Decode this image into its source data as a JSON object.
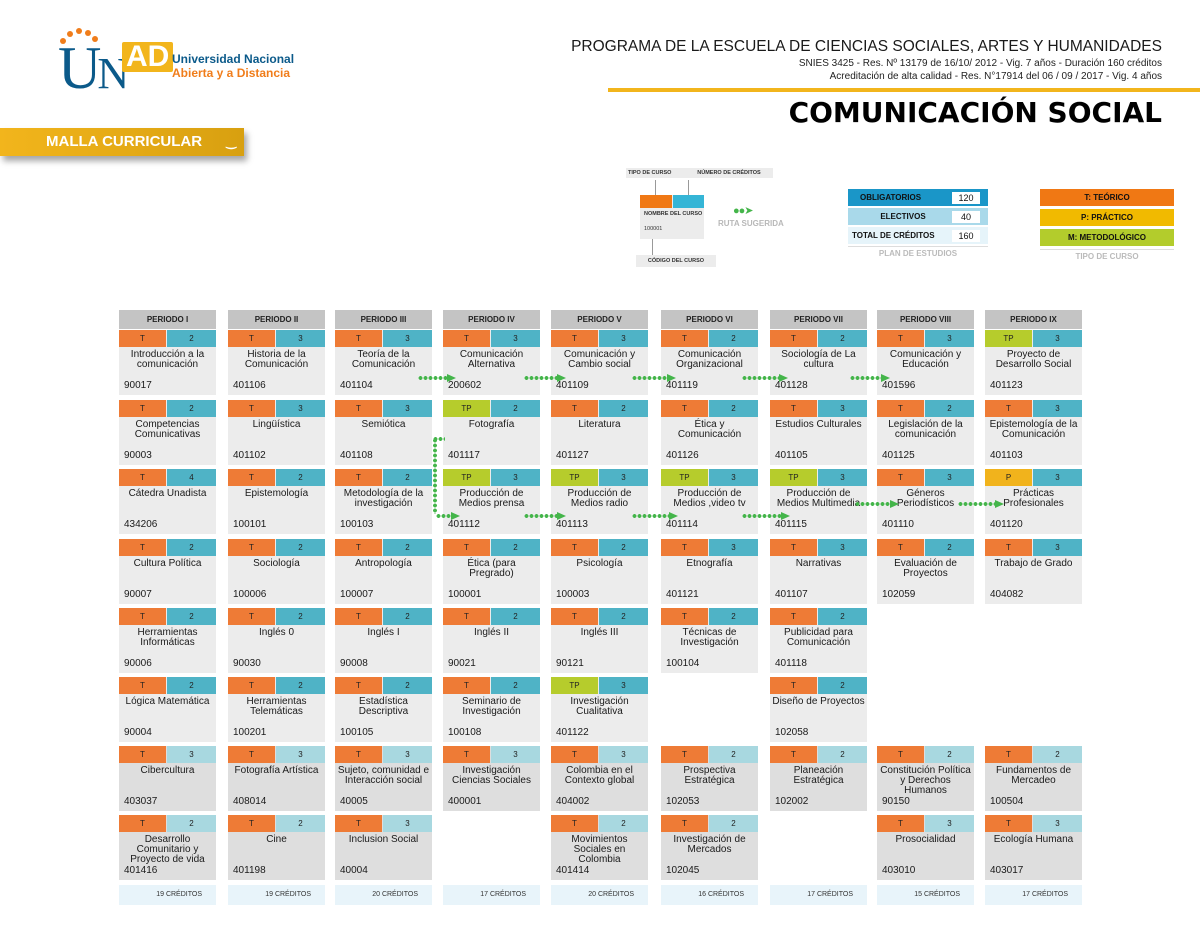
{
  "logo": {
    "letters_u": "U",
    "letters_n": "N",
    "letters_ad": "AD",
    "line1": "Universidad Nacional",
    "line2": "Abierta y a Distancia"
  },
  "banner": {
    "label": "MALLA CURRICULAR"
  },
  "header": {
    "program": "PROGRAMA DE LA ESCUELA DE CIENCIAS SOCIALES, ARTES Y HUMANIDADES",
    "snies": "SNIES 3425 - Res. Nº 13179 de 16/10/ 2012 - Vig. 7 años - Duración 160 créditos",
    "acreditacion": "Acreditación de alta calidad - Res. N°17914 del 06 / 09 / 2017  - Vig. 4 años",
    "title": "COMUNICACIÓN SOCIAL"
  },
  "legend": {
    "tipo_de_curso": "TIPO DE CURSO",
    "numero_de_creditos": "NÚMERO DE CRÉDITOS",
    "nombre_del_curso": "NOMBRE DEL CURSO",
    "codigo_ejemplo": "100001",
    "codigo_del_curso": "CÓDIGO DEL CURSO",
    "ruta_sugerida": "RUTA SUGERIDA"
  },
  "plan_estudios": {
    "caption": "PLAN DE ESTUDIOS",
    "rows": [
      {
        "label": "OBLIGATORIOS",
        "value": "120"
      },
      {
        "label": "ELECTIVOS",
        "value": "40"
      },
      {
        "label": "TOTAL DE CRÉDITOS",
        "value": "160"
      }
    ]
  },
  "tipo_curso": {
    "caption": "TIPO DE CURSO",
    "rows": [
      {
        "label": "T: TEÓRICO",
        "color": "#f07814"
      },
      {
        "label": "P: PRÁCTICO",
        "color": "#f1ba00"
      },
      {
        "label": "M: METODOLÓGICO",
        "color": "#b3cc2c"
      }
    ]
  },
  "colors": {
    "teorico": "#ee7b36",
    "teorico_practico": "#b6cc2c",
    "practico": "#f1b31c",
    "credits": "#4fb3c6",
    "credits_elective": "#a8d8e0",
    "ruta": "#44b54a",
    "gold": "#f2b51c",
    "unad_blue": "#0b5a8a"
  },
  "periods": [
    {
      "label": "PERIODO I",
      "total": "19 CRÉDITOS",
      "courses": [
        {
          "type": "T",
          "credits": "2",
          "name": "Introducción a la comunicación",
          "code": "90017"
        },
        {
          "type": "T",
          "credits": "2",
          "name": "Competencias Comunicativas",
          "code": "90003"
        },
        {
          "type": "T",
          "credits": "4",
          "name": "Cátedra Unadista",
          "code": "434206"
        },
        {
          "type": "T",
          "credits": "2",
          "name": "Cultura Política",
          "code": "90007"
        },
        {
          "type": "T",
          "credits": "2",
          "name": "Herramientas Informáticas",
          "code": "90006"
        },
        {
          "type": "T",
          "credits": "2",
          "name": "Lógica Matemática",
          "code": "90004"
        }
      ],
      "electives": [
        {
          "type": "T",
          "credits": "3",
          "name": "Cibercultura",
          "code": "403037"
        },
        {
          "type": "T",
          "credits": "2",
          "name": "Desarrollo Comunitario y Proyecto de vida",
          "code": "401416"
        }
      ]
    },
    {
      "label": "PERIODO II",
      "total": "19 CRÉDITOS",
      "courses": [
        {
          "type": "T",
          "credits": "3",
          "name": "Historia de la Comunicación",
          "code": "401106"
        },
        {
          "type": "T",
          "credits": "3",
          "name": "Lingüística",
          "code": "401102"
        },
        {
          "type": "T",
          "credits": "2",
          "name": "Epistemología",
          "code": "100101"
        },
        {
          "type": "T",
          "credits": "2",
          "name": "Sociología",
          "code": "100006"
        },
        {
          "type": "T",
          "credits": "2",
          "name": "Inglés 0",
          "code": "90030"
        },
        {
          "type": "T",
          "credits": "2",
          "name": "Herramientas Telemáticas",
          "code": "100201"
        }
      ],
      "electives": [
        {
          "type": "T",
          "credits": "3",
          "name": "Fotografía Artística",
          "code": "408014"
        },
        {
          "type": "T",
          "credits": "2",
          "name": "Cine",
          "code": "401198"
        }
      ]
    },
    {
      "label": "PERIODO III",
      "total": "20 CRÉDITOS",
      "courses": [
        {
          "type": "T",
          "credits": "3",
          "name": "Teoría de la Comunicación",
          "code": "401104"
        },
        {
          "type": "T",
          "credits": "3",
          "name": "Semiótica",
          "code": "401108"
        },
        {
          "type": "T",
          "credits": "2",
          "name": "Metodología de la investigación",
          "code": "100103"
        },
        {
          "type": "T",
          "credits": "2",
          "name": "Antropología",
          "code": "100007"
        },
        {
          "type": "T",
          "credits": "2",
          "name": "Inglés I",
          "code": "90008"
        },
        {
          "type": "T",
          "credits": "2",
          "name": "Estadística Descriptiva",
          "code": "100105"
        }
      ],
      "electives": [
        {
          "type": "T",
          "credits": "3",
          "name": "Sujeto, comunidad e Interacción social",
          "code": "40005"
        },
        {
          "type": "T",
          "credits": "3",
          "name": "Inclusion Social",
          "code": "40004"
        }
      ]
    },
    {
      "label": "PERIODO IV",
      "total": "17 CRÉDITOS",
      "courses": [
        {
          "type": "T",
          "credits": "3",
          "name": "Comunicación Alternativa",
          "code": "200602"
        },
        {
          "type": "TP",
          "credits": "2",
          "name": "Fotografía",
          "code": "401117"
        },
        {
          "type": "TP",
          "credits": "3",
          "name": "Producción de Medios prensa",
          "code": "401112"
        },
        {
          "type": "T",
          "credits": "2",
          "name": "Ética (para Pregrado)",
          "code": "100001"
        },
        {
          "type": "T",
          "credits": "2",
          "name": "Inglés II",
          "code": "90021"
        },
        {
          "type": "T",
          "credits": "2",
          "name": "Seminario de Investigación",
          "code": "100108"
        }
      ],
      "electives": [
        {
          "type": "T",
          "credits": "3",
          "name": "Investigación Ciencias Sociales",
          "code": "400001"
        }
      ]
    },
    {
      "label": "PERIODO V",
      "total": "20 CRÉDITOS",
      "courses": [
        {
          "type": "T",
          "credits": "3",
          "name": "Comunicación y Cambio social",
          "code": "401109"
        },
        {
          "type": "T",
          "credits": "2",
          "name": "Literatura",
          "code": "401127"
        },
        {
          "type": "TP",
          "credits": "3",
          "name": "Producción de Medios radio",
          "code": "401113"
        },
        {
          "type": "T",
          "credits": "2",
          "name": "Psicología",
          "code": "100003"
        },
        {
          "type": "T",
          "credits": "2",
          "name": "Inglés III",
          "code": "90121"
        },
        {
          "type": "TP",
          "credits": "3",
          "name": "Investigación Cualitativa",
          "code": "401122"
        }
      ],
      "electives": [
        {
          "type": "T",
          "credits": "3",
          "name": "Colombia en el Contexto global",
          "code": "404002"
        },
        {
          "type": "T",
          "credits": "2",
          "name": "Movimientos Sociales en Colombia",
          "code": "401414"
        }
      ]
    },
    {
      "label": "PERIODO VI",
      "total": "16 CRÉDITOS",
      "courses": [
        {
          "type": "T",
          "credits": "2",
          "name": "Comunicación Organizacional",
          "code": "401119"
        },
        {
          "type": "T",
          "credits": "2",
          "name": "Ética y Comunicación",
          "code": "401126"
        },
        {
          "type": "TP",
          "credits": "3",
          "name": "Producción de Medios ,video tv",
          "code": "401114"
        },
        {
          "type": "T",
          "credits": "3",
          "name": "Etnografía",
          "code": "401121"
        },
        {
          "type": "T",
          "credits": "2",
          "name": "Técnicas de Investigación",
          "code": "100104"
        }
      ],
      "electives": [
        {
          "type": "T",
          "credits": "2",
          "name": "Prospectiva Estratégica",
          "code": "102053"
        },
        {
          "type": "T",
          "credits": "2",
          "name": "Investigación de Mercados",
          "code": "102045"
        }
      ]
    },
    {
      "label": "PERIODO VII",
      "total": "17 CRÉDITOS",
      "courses": [
        {
          "type": "T",
          "credits": "2",
          "name": "Sociología de La cultura",
          "code": "401128"
        },
        {
          "type": "T",
          "credits": "3",
          "name": "Estudios Culturales",
          "code": "401105"
        },
        {
          "type": "TP",
          "credits": "3",
          "name": "Producción de Medios Multimedia",
          "code": "401115"
        },
        {
          "type": "T",
          "credits": "3",
          "name": "Narrativas",
          "code": "401107"
        },
        {
          "type": "T",
          "credits": "2",
          "name": "Publicidad para Comunicación",
          "code": "401118"
        },
        {
          "type": "T",
          "credits": "2",
          "name": "Diseño de Proyectos",
          "code": "102058"
        }
      ],
      "electives": [
        {
          "type": "T",
          "credits": "2",
          "name": "Planeación Estratégica",
          "code": "102002"
        }
      ]
    },
    {
      "label": "PERIODO VIII",
      "total": "15 CRÉDITOS",
      "courses": [
        {
          "type": "T",
          "credits": "3",
          "name": "Comunicación y Educación",
          "code": "401596"
        },
        {
          "type": "T",
          "credits": "2",
          "name": "Legislación de la comunicación",
          "code": "401125"
        },
        {
          "type": "T",
          "credits": "3",
          "name": "Géneros Periodísticos",
          "code": "401110"
        },
        {
          "type": "T",
          "credits": "2",
          "name": "Evaluación de Proyectos",
          "code": "102059"
        }
      ],
      "electives": [
        {
          "type": "T",
          "credits": "2",
          "name": "Constitución Política y Derechos Humanos",
          "code": "90150"
        },
        {
          "type": "T",
          "credits": "3",
          "name": "Prosocialidad",
          "code": "403010"
        }
      ]
    },
    {
      "label": "PERIODO IX",
      "total": "17 CRÉDITOS",
      "courses": [
        {
          "type": "TP",
          "credits": "3",
          "name": "Proyecto de Desarrollo Social",
          "code": "401123"
        },
        {
          "type": "T",
          "credits": "3",
          "name": "Epistemología de la Comunicación",
          "code": "401103"
        },
        {
          "type": "P",
          "credits": "3",
          "name": "Prácticas Profesionales",
          "code": "401120"
        },
        {
          "type": "T",
          "credits": "3",
          "name": "Trabajo de Grado",
          "code": "404082"
        }
      ],
      "electives": [
        {
          "type": "T",
          "credits": "2",
          "name": "Fundamentos de Mercadeo",
          "code": "100504"
        },
        {
          "type": "T",
          "credits": "3",
          "name": "Ecología Humana",
          "code": "403017"
        }
      ]
    }
  ]
}
